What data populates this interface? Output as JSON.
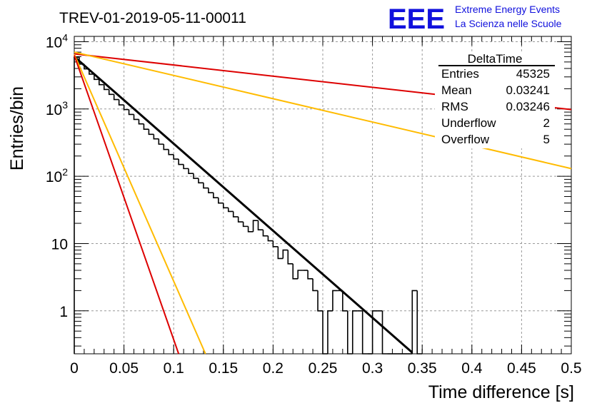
{
  "header": {
    "title": "TREV-01-2019-05-11-00011",
    "logo_letters": "EEE",
    "logo_line1": "Extreme Energy Events",
    "logo_line2": "La Scienza nelle Scuole",
    "logo_color": "#1010dd"
  },
  "stats_box": {
    "name": "DeltaTime",
    "rows": [
      {
        "label": "Entries",
        "value": "45325"
      },
      {
        "label": "Mean",
        "value": "0.03241"
      },
      {
        "label": "RMS",
        "value": "0.03246"
      },
      {
        "label": "Underflow",
        "value": "2"
      },
      {
        "label": "Overflow",
        "value": "5"
      }
    ]
  },
  "chart_data": {
    "type": "bar",
    "subtype": "histogram with fitted curves",
    "xlabel": "Time difference [s]",
    "ylabel": "Entries/bin",
    "xlim": [
      0,
      0.5
    ],
    "ylim": [
      0.23,
      12000
    ],
    "yscale": "log",
    "grid": true,
    "x_ticks": [
      0,
      0.05,
      0.1,
      0.15,
      0.2,
      0.25,
      0.3,
      0.35,
      0.4,
      0.45,
      0.5
    ],
    "x_tick_labels": [
      "0",
      "0.05",
      "0.1",
      "0.15",
      "0.2",
      "0.25",
      "0.3",
      "0.35",
      "0.4",
      "0.45",
      "0.5"
    ],
    "y_ticks": [
      1,
      10,
      100,
      1000,
      10000
    ],
    "y_tick_labels": [
      "1",
      "10",
      "10^2",
      "10^3",
      "10^4"
    ],
    "bin_width": 0.005,
    "histogram": [
      5900,
      4650,
      3950,
      3300,
      2750,
      2300,
      1950,
      1650,
      1380,
      1150,
      980,
      830,
      700,
      600,
      500,
      420,
      360,
      300,
      250,
      210,
      180,
      150,
      130,
      110,
      93,
      80,
      67,
      57,
      48,
      40,
      34,
      30,
      25,
      21,
      18,
      15,
      22,
      16,
      13,
      11,
      9,
      6,
      8,
      5,
      3,
      4,
      4,
      3,
      2,
      1,
      0,
      1,
      2,
      2,
      1,
      0,
      1,
      1,
      0,
      0,
      1,
      1,
      0,
      0,
      0,
      0,
      0,
      0,
      2,
      0
    ],
    "fits": [
      {
        "color": "#000000",
        "y0": 6000,
        "x_end": 0.34,
        "y_end": 0.24,
        "width": 3
      },
      {
        "color": "#dd0000",
        "y0": 6600,
        "x_end": 0.5,
        "y_end": 980,
        "width": 2
      },
      {
        "color": "#ffbb00",
        "y0": 7000,
        "x_end": 0.5,
        "y_end": 130,
        "width": 2
      },
      {
        "color": "#ffbb00",
        "y0": 6500,
        "x_end": 0.132,
        "y_end": 0.23,
        "width": 2
      },
      {
        "color": "#dd0000",
        "y0": 6300,
        "x_end": 0.105,
        "y_end": 0.23,
        "width": 2
      }
    ]
  }
}
